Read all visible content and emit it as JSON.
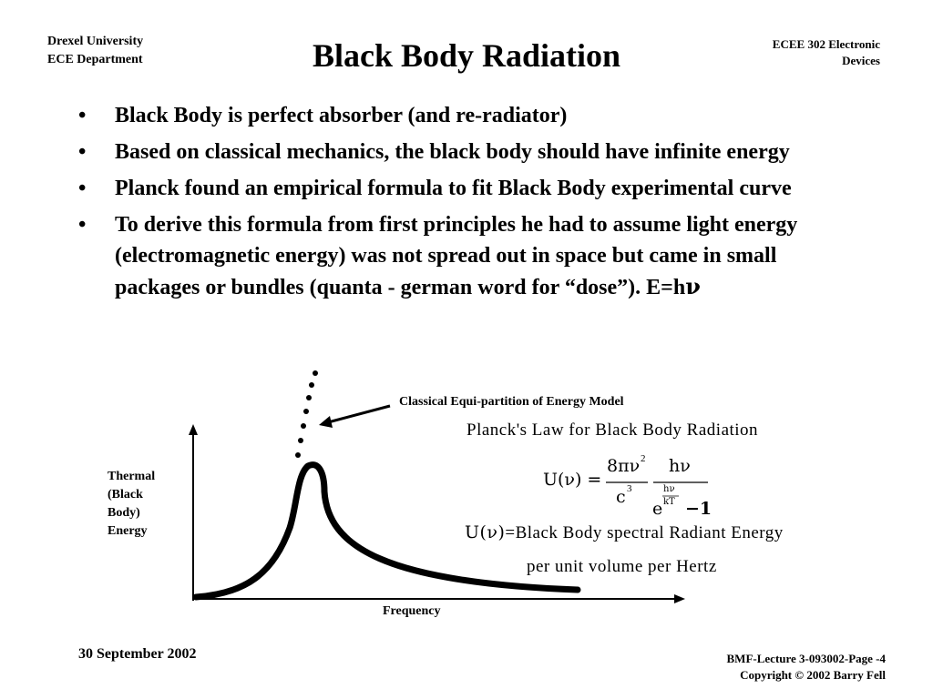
{
  "header": {
    "left_line1": "Drexel University",
    "left_line2": "ECE Department",
    "title": "Black Body Radiation",
    "right_line1": "ECEE 302 Electronic",
    "right_line2": "Devices"
  },
  "bullets": [
    {
      "text": "Black Body is perfect absorber (and re-radiator)"
    },
    {
      "text": "Based on classical mechanics, the black body should have infinite energy"
    },
    {
      "text": "Planck found an empirical formula to fit Black Body experimental curve"
    },
    {
      "text": "To derive this formula from first principles he had to assume light energy (electromagnetic energy) was not spread out in space but came in small packages or bundles (quanta - german word for “dose”).  E=h",
      "symbol": "ν"
    }
  ],
  "bullet_char": "•",
  "figure": {
    "ylabel_lines": [
      "Thermal",
      "(Black",
      "Body)",
      "Energy"
    ],
    "xlabel": "Frequency",
    "annotation": "Classical Equi-partition of Energy Model",
    "planck_title": "Planck's  Law  for  Black  Body  Radiation",
    "definition_line1": "=Black  Body  spectral  Radiant  Energy",
    "definition_line2": "per  unit  volume  per  Hertz"
  },
  "formula": {
    "lhs": "U(ν) =",
    "frac1_num": "8πν",
    "frac1_num_exp": "2",
    "frac1_den": "c",
    "frac1_den_exp": "3",
    "frac2_num": "hν",
    "frac2_den_base": "e",
    "frac2_den_exp_num": "hν",
    "frac2_den_exp_den": "kT",
    "frac2_den_tail": "−1",
    "def_lhs": "U(ν)"
  },
  "footer": {
    "date": "30 September 2002",
    "right_line1": "BMF-Lecture 3-093002-Page -4",
    "right_line2": "Copyright © 2002 Barry Fell"
  }
}
